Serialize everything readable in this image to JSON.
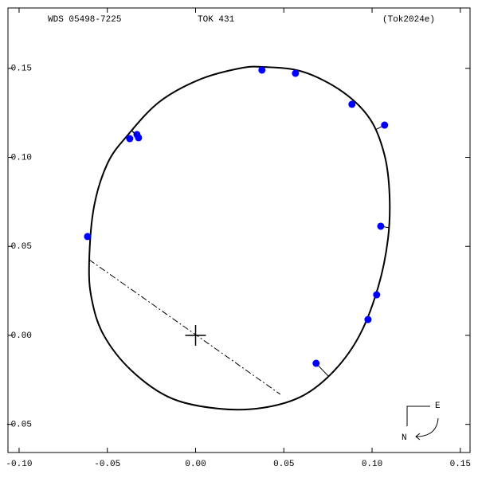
{
  "chart_data": {
    "type": "orbit",
    "title": "WDS 05498-7225",
    "subtitle": "TOK 431",
    "reference": "(Tok2024e)",
    "compass": {
      "east": "E",
      "north": "N"
    },
    "xlim": [
      -0.1063,
      0.1555
    ],
    "ylim": [
      -0.0658,
      0.1839
    ],
    "xticks": [
      {
        "value": -0.1,
        "label": "-0.10"
      },
      {
        "value": -0.05,
        "label": "-0.05"
      },
      {
        "value": 0,
        "label": "0.00"
      },
      {
        "value": 0.05,
        "label": "0.05"
      },
      {
        "value": 0.1,
        "label": "0.10"
      },
      {
        "value": 0.15,
        "label": "0.15"
      }
    ],
    "yticks": [
      {
        "value": -0.05,
        "label": "-0.05"
      },
      {
        "value": 0,
        "label": "0.00"
      },
      {
        "value": 0.05,
        "label": "0.05"
      },
      {
        "value": 0.1,
        "label": "0.10"
      },
      {
        "value": 0.15,
        "label": "0.15"
      }
    ],
    "orbit": {
      "color": "#000000",
      "x": [
        -0.0603,
        -0.0576,
        -0.0499,
        -0.0386,
        -0.0206,
        0.002,
        0.0245,
        0.0381,
        0.0607,
        0.0832,
        0.099,
        0.1071,
        0.1099,
        0.109,
        0.1035,
        0.0931,
        0.0787,
        0.0606,
        0.0381,
        0.0133,
        -0.0138,
        -0.0364,
        -0.0522,
        -0.0589
      ],
      "y": [
        0.0407,
        0.072,
        0.0966,
        0.1123,
        0.1311,
        0.1436,
        0.1499,
        0.1508,
        0.1481,
        0.1369,
        0.1213,
        0.1011,
        0.0787,
        0.0541,
        0.0273,
        0.0004,
        -0.0197,
        -0.034,
        -0.0407,
        -0.0412,
        -0.0353,
        -0.0197,
        0.0004,
        0.0206
      ]
    },
    "line_of_nodes": {
      "x": [
        -0.0603,
        0.048
      ],
      "y": [
        0.0425,
        -0.0331
      ]
    },
    "primary": {
      "x": 0,
      "y": 0
    },
    "observations": {
      "color": "#0000ff",
      "x": [
        -0.0612,
        -0.0373,
        -0.0332,
        -0.0323,
        0.0376,
        0.0566,
        0.0886,
        0.1071,
        0.1049,
        0.1026,
        0.0977,
        0.0683
      ],
      "y": [
        0.0555,
        0.1105,
        0.1128,
        0.111,
        0.149,
        0.1472,
        0.1298,
        0.1181,
        0.0613,
        0.0228,
        0.0089,
        -0.0157
      ]
    }
  }
}
